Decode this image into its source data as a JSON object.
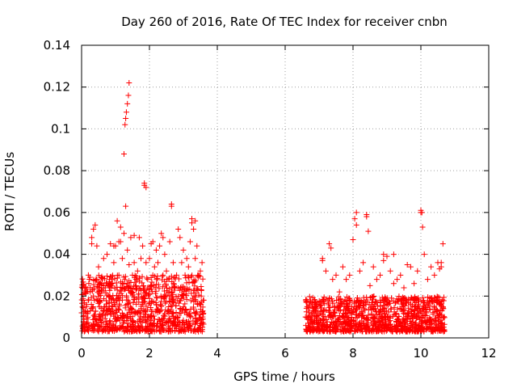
{
  "chart_data": {
    "type": "scatter",
    "title": "Day 260 of 2016, Rate Of TEC Index for receiver cnbn",
    "xlabel": "GPS time / hours",
    "ylabel": "ROTI / TECUs",
    "xlim": [
      0,
      12
    ],
    "ylim": [
      0,
      0.14
    ],
    "xticks": [
      "0",
      "2",
      "4",
      "6",
      "8",
      "10",
      "12"
    ],
    "yticks": [
      "0",
      "0.02",
      "0.04",
      "0.06",
      "0.08",
      "0.1",
      "0.12",
      "0.14"
    ],
    "grid": true,
    "marker": "+",
    "color": "#ff0000",
    "series": [
      {
        "name": "ROTI",
        "x": [
          0.0,
          0.05,
          0.1,
          0.15,
          0.2,
          0.25,
          0.3,
          0.35,
          0.4,
          0.45,
          0.5,
          0.55,
          0.6,
          0.65,
          0.7,
          0.75,
          0.8,
          0.85,
          0.9,
          0.95,
          1.0,
          1.05,
          1.1,
          1.15,
          1.2,
          1.25,
          1.3,
          1.35,
          1.4,
          1.45,
          1.5,
          1.55,
          1.6,
          1.65,
          1.7,
          1.75,
          1.8,
          1.85,
          1.9,
          1.95,
          2.0,
          2.05,
          2.1,
          2.15,
          2.2,
          2.25,
          2.3,
          2.35,
          2.4,
          2.45,
          2.5,
          2.55,
          2.6,
          2.65,
          2.7,
          2.75,
          2.8,
          2.85,
          2.9,
          2.95,
          3.0,
          3.05,
          3.1,
          3.15,
          3.2,
          3.25,
          3.3,
          3.35,
          3.4,
          3.45,
          3.5,
          3.55,
          0.3,
          0.35,
          0.45,
          1.1,
          1.15,
          1.25,
          1.28,
          1.3,
          1.32,
          1.35,
          1.38,
          1.4,
          1.85,
          1.9,
          2.65,
          3.25,
          3.35,
          2.1,
          2.4,
          0.95,
          1.55,
          6.6,
          6.7,
          6.8,
          6.9,
          7.0,
          7.1,
          7.2,
          7.3,
          7.4,
          7.5,
          7.6,
          7.7,
          7.8,
          7.9,
          8.0,
          8.1,
          8.2,
          8.3,
          8.4,
          8.5,
          8.6,
          8.7,
          8.8,
          8.9,
          9.0,
          9.1,
          9.2,
          9.3,
          9.4,
          9.5,
          9.6,
          9.7,
          9.8,
          9.9,
          10.0,
          10.1,
          10.2,
          10.3,
          10.4,
          10.5,
          10.6,
          10.65,
          7.35,
          8.05,
          8.1,
          8.4,
          8.45,
          10.0,
          10.05,
          10.03,
          10.55,
          10.6,
          7.1,
          9.2,
          8.9
        ],
        "y": [
          0.012,
          0.018,
          0.024,
          0.015,
          0.03,
          0.022,
          0.045,
          0.02,
          0.054,
          0.028,
          0.034,
          0.018,
          0.026,
          0.038,
          0.024,
          0.04,
          0.02,
          0.045,
          0.026,
          0.036,
          0.044,
          0.056,
          0.03,
          0.046,
          0.038,
          0.05,
          0.063,
          0.042,
          0.035,
          0.048,
          0.03,
          0.036,
          0.028,
          0.032,
          0.048,
          0.038,
          0.044,
          0.073,
          0.036,
          0.028,
          0.038,
          0.045,
          0.03,
          0.034,
          0.042,
          0.036,
          0.044,
          0.05,
          0.03,
          0.04,
          0.032,
          0.028,
          0.046,
          0.064,
          0.036,
          0.024,
          0.03,
          0.052,
          0.048,
          0.036,
          0.042,
          0.03,
          0.038,
          0.034,
          0.046,
          0.057,
          0.052,
          0.038,
          0.044,
          0.03,
          0.032,
          0.036,
          0.048,
          0.052,
          0.044,
          0.046,
          0.053,
          0.088,
          0.102,
          0.105,
          0.108,
          0.112,
          0.116,
          0.122,
          0.074,
          0.072,
          0.063,
          0.055,
          0.056,
          0.046,
          0.048,
          0.044,
          0.049,
          0.01,
          0.012,
          0.008,
          0.014,
          0.011,
          0.038,
          0.032,
          0.045,
          0.028,
          0.03,
          0.022,
          0.034,
          0.028,
          0.03,
          0.047,
          0.06,
          0.032,
          0.036,
          0.059,
          0.025,
          0.034,
          0.028,
          0.03,
          0.04,
          0.039,
          0.032,
          0.026,
          0.028,
          0.03,
          0.024,
          0.035,
          0.034,
          0.026,
          0.032,
          0.06,
          0.04,
          0.028,
          0.034,
          0.03,
          0.036,
          0.034,
          0.045,
          0.043,
          0.057,
          0.054,
          0.058,
          0.051,
          0.061,
          0.053,
          0.06,
          0.033,
          0.036,
          0.037,
          0.04,
          0.037
        ]
      }
    ],
    "noise_bands": [
      {
        "x_start": 0.0,
        "x_end": 3.6,
        "y_min": 0.003,
        "y_max": 0.03
      },
      {
        "x_start": 6.6,
        "x_end": 10.7,
        "y_min": 0.003,
        "y_max": 0.02
      }
    ]
  }
}
